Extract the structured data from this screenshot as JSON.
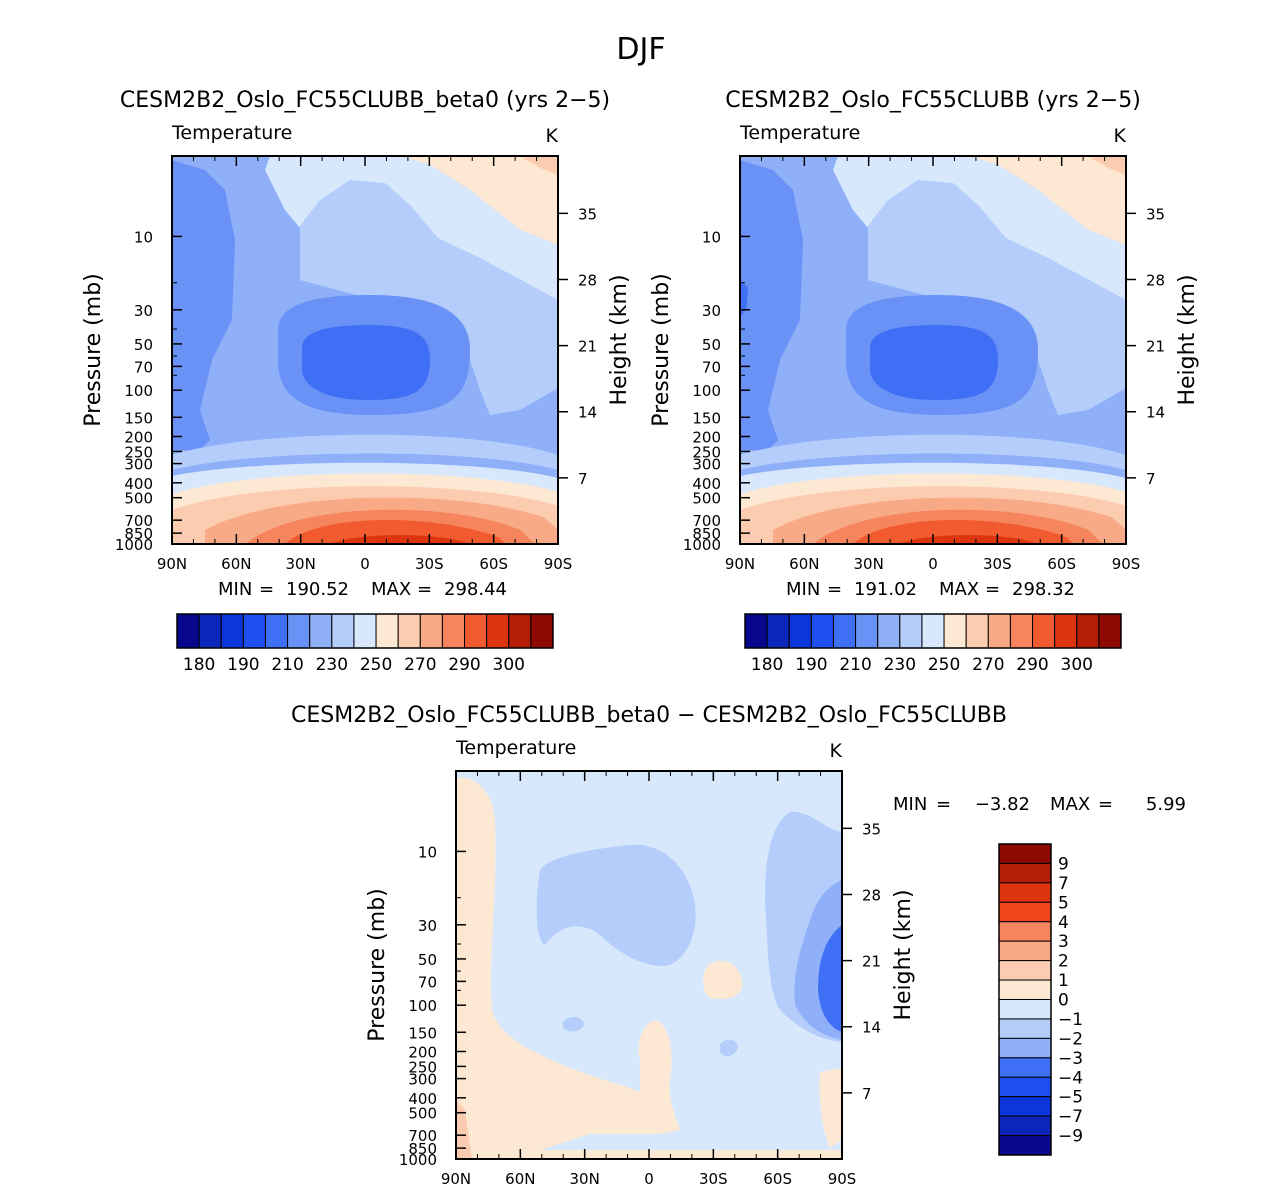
{
  "figure_title": "DJF",
  "axis_text": {
    "field": "Temperature",
    "units": "K",
    "ylabel": "Pressure (mb)",
    "ylabel_right": "Height (km)"
  },
  "chart_data": [
    {
      "type": "heatmap",
      "title": "CESM2B2_Oslo_FC55CLUBB_beta0 (yrs 2−5)",
      "field": "Temperature",
      "units": "K",
      "ylabel": "Pressure (mb)",
      "ylabel_right": "Height (km)",
      "x_ticks": [
        "90N",
        "60N",
        "30N",
        "0",
        "30S",
        "60S",
        "90S"
      ],
      "y_ticks": [
        "10",
        "30",
        "50",
        "70",
        "100",
        "150",
        "200",
        "250",
        "300",
        "400",
        "500",
        "700",
        "850",
        "1000"
      ],
      "y_ticks_right": [
        "35",
        "28",
        "21",
        "14",
        "7"
      ],
      "min_label": "MIN",
      "max_label": "MAX",
      "min": "190.52",
      "max": "298.44",
      "colorbar_labels": [
        "180",
        "190",
        "210",
        "230",
        "250",
        "270",
        "290",
        "300"
      ]
    },
    {
      "type": "heatmap",
      "title": "CESM2B2_Oslo_FC55CLUBB (yrs 2−5)",
      "field": "Temperature",
      "units": "K",
      "ylabel": "Pressure (mb)",
      "ylabel_right": "Height (km)",
      "x_ticks": [
        "90N",
        "60N",
        "30N",
        "0",
        "30S",
        "60S",
        "90S"
      ],
      "y_ticks": [
        "10",
        "30",
        "50",
        "70",
        "100",
        "150",
        "200",
        "250",
        "300",
        "400",
        "500",
        "700",
        "850",
        "1000"
      ],
      "y_ticks_right": [
        "35",
        "28",
        "21",
        "14",
        "7"
      ],
      "min_label": "MIN",
      "max_label": "MAX",
      "min": "191.02",
      "max": "298.32",
      "colorbar_labels": [
        "180",
        "190",
        "210",
        "230",
        "250",
        "270",
        "290",
        "300"
      ]
    },
    {
      "type": "heatmap",
      "title": "CESM2B2_Oslo_FC55CLUBB_beta0 − CESM2B2_Oslo_FC55CLUBB",
      "field": "Temperature",
      "units": "K",
      "ylabel": "Pressure (mb)",
      "ylabel_right": "Height (km)",
      "x_ticks": [
        "90N",
        "60N",
        "30N",
        "0",
        "30S",
        "60S",
        "90S"
      ],
      "y_ticks": [
        "10",
        "30",
        "50",
        "70",
        "100",
        "150",
        "200",
        "250",
        "300",
        "400",
        "500",
        "700",
        "850",
        "1000"
      ],
      "y_ticks_right": [
        "35",
        "28",
        "21",
        "14",
        "7"
      ],
      "min_label": "MIN",
      "max_label": "MAX",
      "min": "−3.82",
      "max": "5.99",
      "colorbar_labels": [
        "9",
        "7",
        "5",
        "4",
        "3",
        "2",
        "1",
        "0",
        "−1",
        "−2",
        "−3",
        "−4",
        "−5",
        "−7",
        "−9"
      ]
    }
  ],
  "palettes": {
    "temperature": [
      "#08088c",
      "#0b26b8",
      "#0a36dc",
      "#1c4ef0",
      "#3f6ff4",
      "#6a92f6",
      "#8fb0f9",
      "#b4cdfb",
      "#d7e8fd",
      "#fde8d4",
      "#fcccb0",
      "#f8a985",
      "#f6845c",
      "#f25b2f",
      "#dc3510",
      "#b51e06",
      "#8c0a02"
    ],
    "difference": [
      "#8c0a02",
      "#b51e06",
      "#dc3510",
      "#f0461c",
      "#f6845c",
      "#f8a985",
      "#fcccb0",
      "#fde8d4",
      "#d7e8fd",
      "#b4cdfb",
      "#8fb0f9",
      "#3f6ff4",
      "#1c4ef0",
      "#0a36dc",
      "#0b26b8",
      "#08088c"
    ]
  }
}
